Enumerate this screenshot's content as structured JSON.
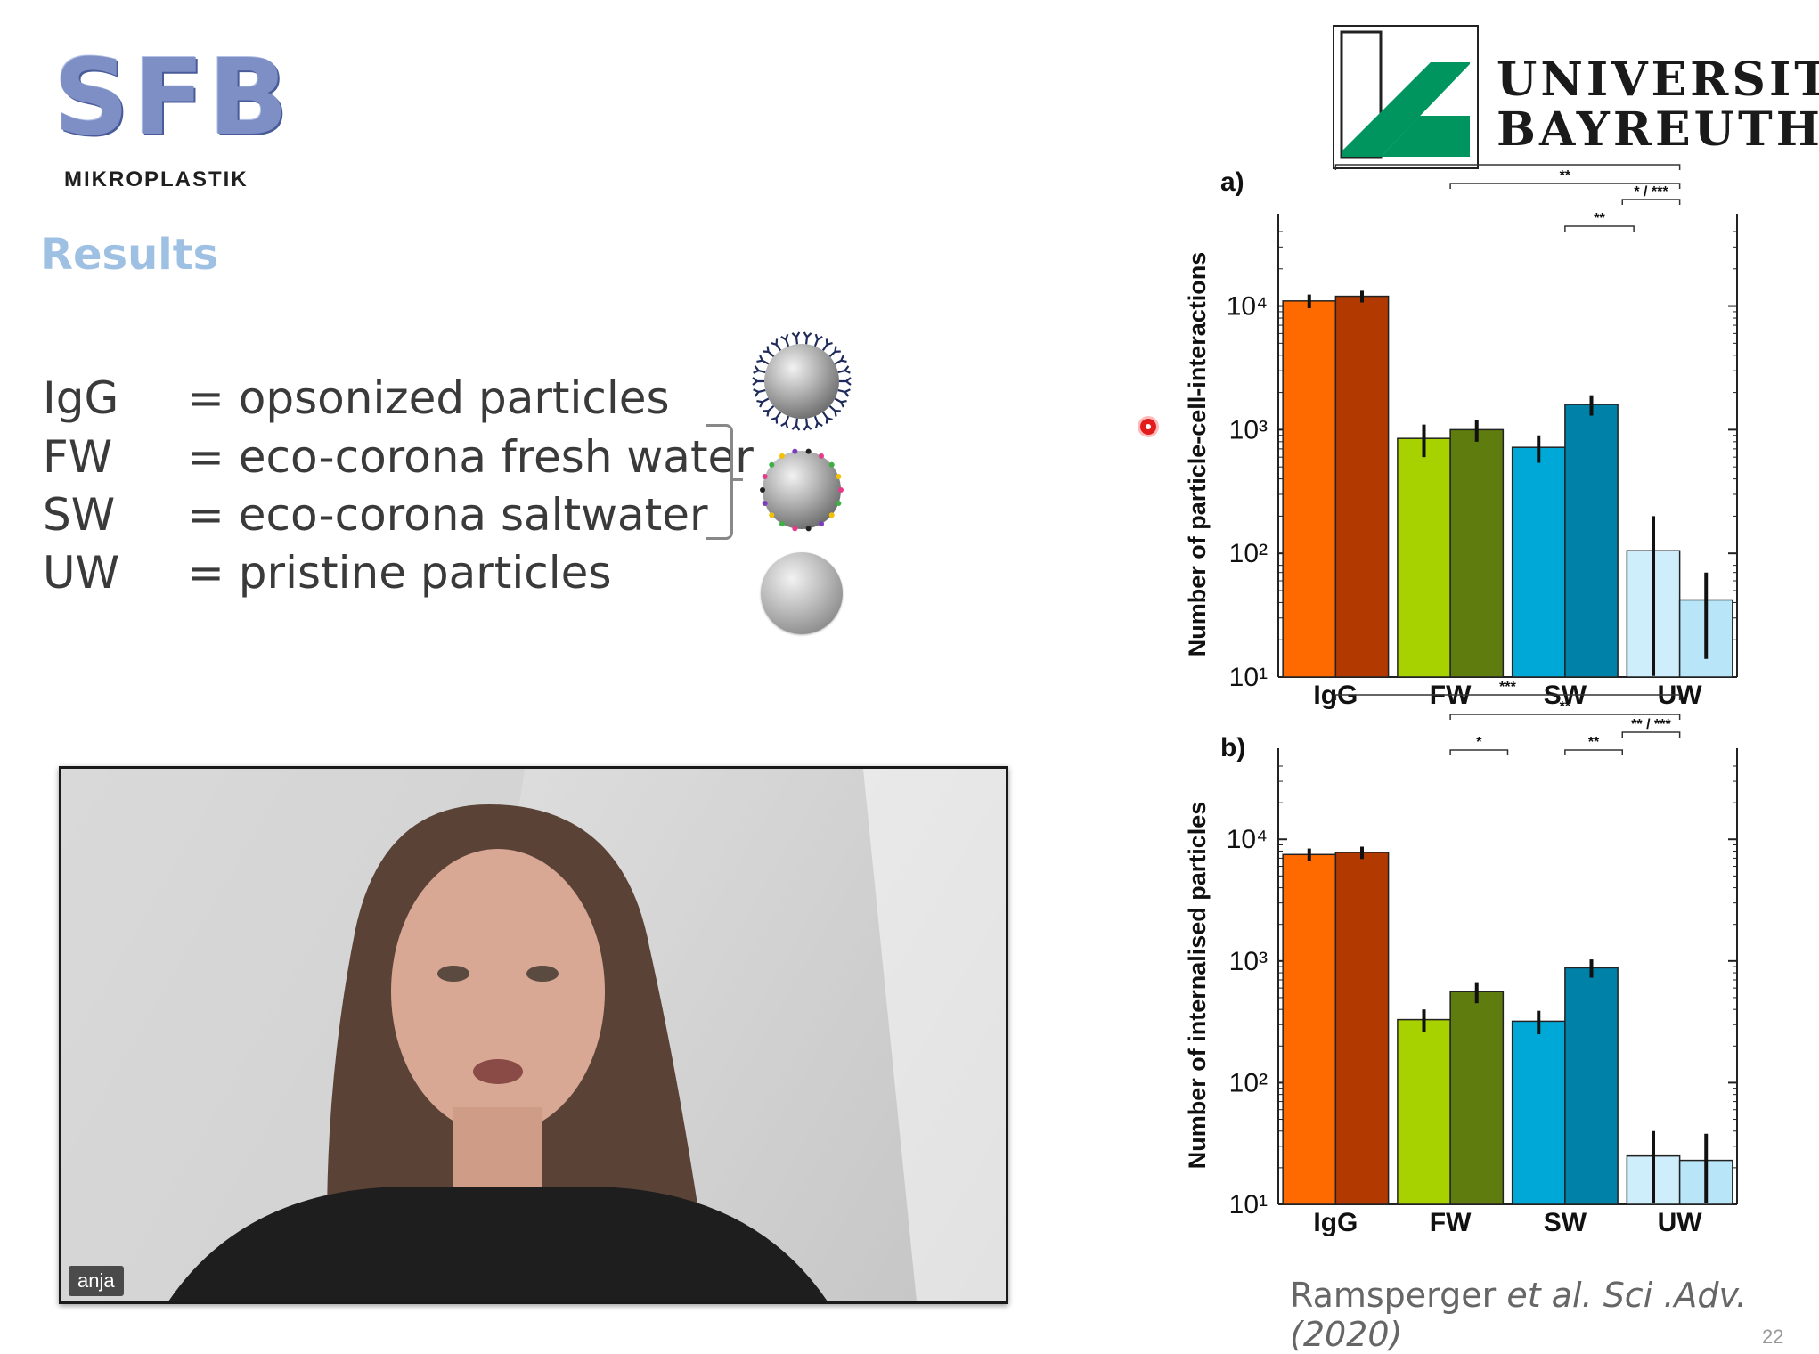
{
  "header": {
    "sfb_logo_text": "SFB",
    "sfb_logo_subtitle": "MIKROPLASTIK",
    "university_line1": "UNIVERSITÄT",
    "university_line2": "BAYREUTH",
    "brand_green": "#00955f"
  },
  "slide": {
    "title": "Results",
    "legend": [
      {
        "abbr": "IgG",
        "desc": "= opsonized particles"
      },
      {
        "abbr": "FW",
        "desc": "= eco-corona fresh water"
      },
      {
        "abbr": "SW",
        "desc": "= eco-corona saltwater"
      },
      {
        "abbr": "UW",
        "desc": "= pristine particles"
      }
    ],
    "citation_author": "Ramsperger ",
    "citation_etal": "et al. Sci .Adv. (2020)",
    "page_number": "22"
  },
  "video": {
    "participant_name": "anja"
  },
  "chart_data": [
    {
      "panel": "a)",
      "type": "bar",
      "ylabel": "Number of particle-cell-interactions",
      "yscale": "log",
      "ylim": [
        10,
        40000
      ],
      "yticks": [
        "10¹",
        "10²",
        "10³",
        "10⁴"
      ],
      "categories": [
        "IgG",
        "FW",
        "SW",
        "UW"
      ],
      "series": [
        {
          "values": [
            11000,
            850,
            720,
            105
          ],
          "errors": [
            1400,
            250,
            180,
            95
          ]
        },
        {
          "values": [
            12000,
            1000,
            1600,
            42
          ],
          "errors": [
            1300,
            200,
            300,
            28
          ]
        }
      ],
      "colors": [
        [
          "#ff6a00",
          "#b23a00"
        ],
        [
          "#a8d100",
          "#5e7d0e"
        ],
        [
          "#00a8d8",
          "#0081a8"
        ],
        [
          "#cdeefa",
          "#b8e6f8"
        ]
      ],
      "significance": [
        "***",
        "**",
        "* / ***",
        "**"
      ]
    },
    {
      "panel": "b)",
      "type": "bar",
      "ylabel": "Number of internalised particles",
      "yscale": "log",
      "ylim": [
        10,
        40000
      ],
      "yticks": [
        "10¹",
        "10²",
        "10³",
        "10⁴"
      ],
      "categories": [
        "IgG",
        "FW",
        "SW",
        "UW"
      ],
      "series": [
        {
          "values": [
            7500,
            330,
            320,
            25
          ],
          "errors": [
            900,
            70,
            70,
            15
          ]
        },
        {
          "values": [
            7800,
            560,
            880,
            23
          ],
          "errors": [
            900,
            110,
            150,
            15
          ]
        }
      ],
      "colors": [
        [
          "#ff6a00",
          "#b23a00"
        ],
        [
          "#a8d100",
          "#5e7d0e"
        ],
        [
          "#00a8d8",
          "#0081a8"
        ],
        [
          "#cdeefa",
          "#b8e6f8"
        ]
      ],
      "significance": [
        "***",
        "**",
        "** / ***",
        "*",
        "**"
      ]
    }
  ]
}
